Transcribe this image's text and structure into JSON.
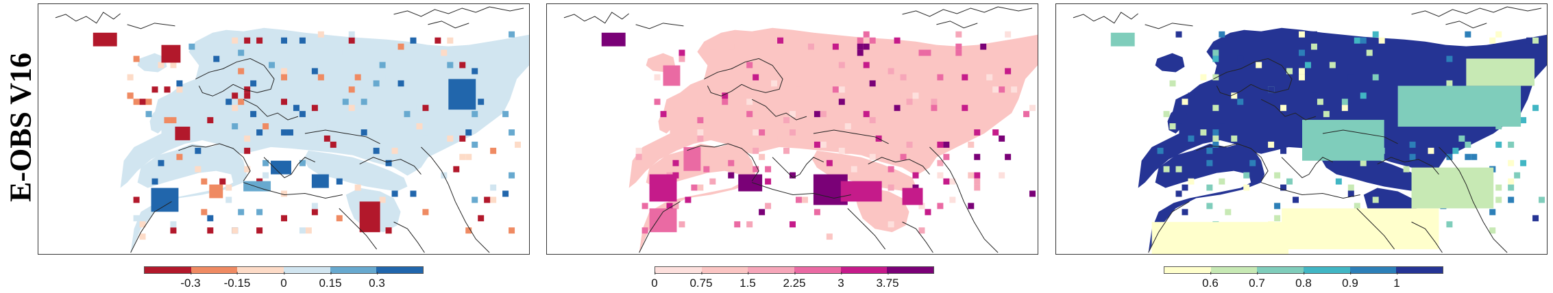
{
  "title": "E-OBS V16",
  "panels": [
    {
      "id": "panel-1",
      "palette": [
        "#b2182b",
        "#ef8a62",
        "#fddbc7",
        "#d1e5f0",
        "#67a9cf",
        "#2166ac"
      ],
      "colorbar_ticks": [
        "-0.3",
        "-0.15",
        "0",
        "0.15",
        "0.3"
      ],
      "land_color": "#d1e5f0"
    },
    {
      "id": "panel-2",
      "palette": [
        "#fde0dd",
        "#fbc5c3",
        "#f6a6b9",
        "#ea6aa3",
        "#c51b8a",
        "#7a0177"
      ],
      "colorbar_ticks": [
        "0",
        "0.75",
        "1.5",
        "2.25",
        "3",
        "3.75"
      ],
      "land_color": "#fbc5c3"
    },
    {
      "id": "panel-3",
      "palette": [
        "#ffffcc",
        "#c7e9b4",
        "#7fcdbb",
        "#41b6c4",
        "#2c7fb8",
        "#253494"
      ],
      "colorbar_ticks": [
        "0.6",
        "0.7",
        "0.8",
        "0.9",
        "1"
      ],
      "land_color": "#253494"
    }
  ]
}
